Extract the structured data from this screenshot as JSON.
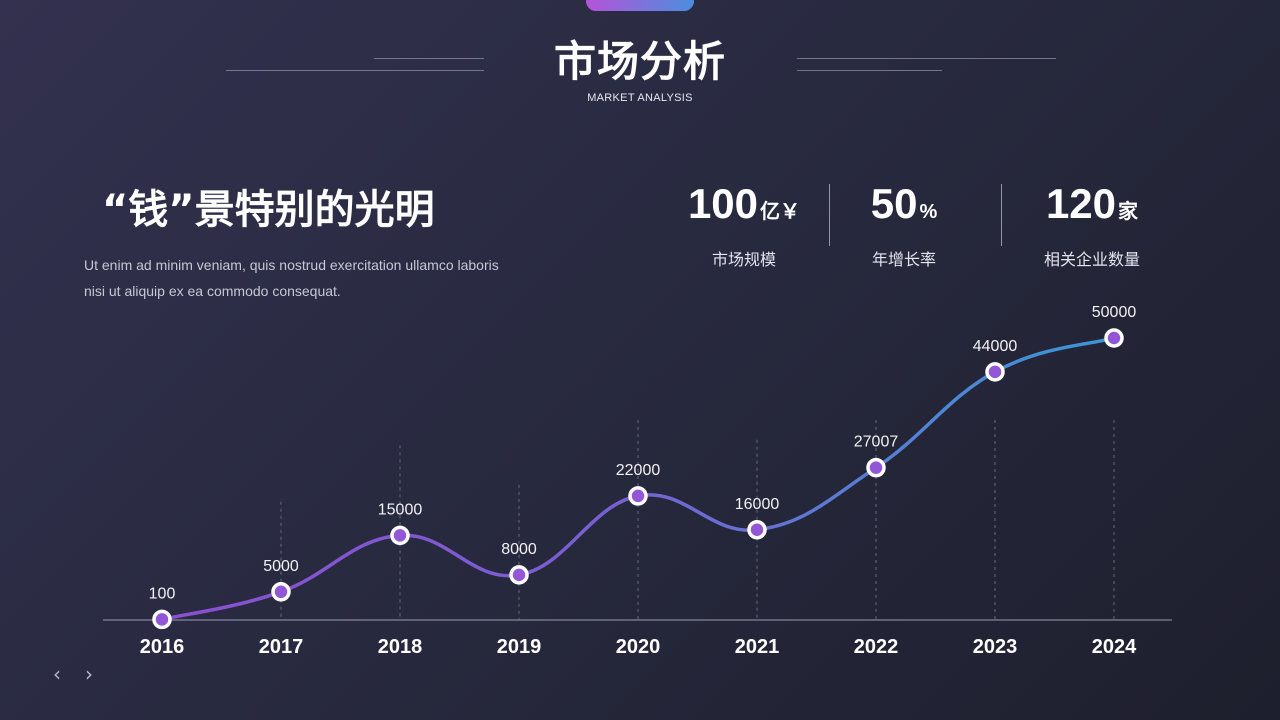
{
  "header": {
    "title": "市场分析",
    "subtitle": "MARKET ANALYSIS"
  },
  "headline": "“钱”景特别的光明",
  "description": "Ut enim ad minim veniam, quis nostrud exercitation ullamco laboris nisi ut aliquip ex ea commodo consequat.",
  "stats": [
    {
      "value": "100",
      "unit": "亿￥",
      "label": "市场规模"
    },
    {
      "value": "50",
      "unit": "%",
      "label": "年增长率"
    },
    {
      "value": "120",
      "unit": "家",
      "label": "相关企业数量"
    }
  ],
  "colors": {
    "accent_purple": "#8a4fd0",
    "accent_blue": "#3a97d6",
    "marker_fill": "#9256d6"
  },
  "icons": [
    "chevron-left-icon",
    "chevron-right-icon"
  ],
  "chart_data": {
    "type": "line",
    "x": [
      "2016",
      "2017",
      "2018",
      "2019",
      "2020",
      "2021",
      "2022",
      "2023",
      "2024"
    ],
    "series": [
      {
        "values": [
          100,
          5000,
          15000,
          8000,
          22000,
          16000,
          27007,
          44000,
          50000
        ]
      }
    ],
    "data_labels": [
      "100",
      "5000",
      "15000",
      "8000",
      "22000",
      "16000",
      "27007",
      "44000",
      "50000"
    ],
    "ylim": [
      0,
      50000
    ],
    "grid": "vertical dashed lines at each point",
    "legend": "none",
    "title": "",
    "xlabel": "",
    "ylabel": ""
  }
}
